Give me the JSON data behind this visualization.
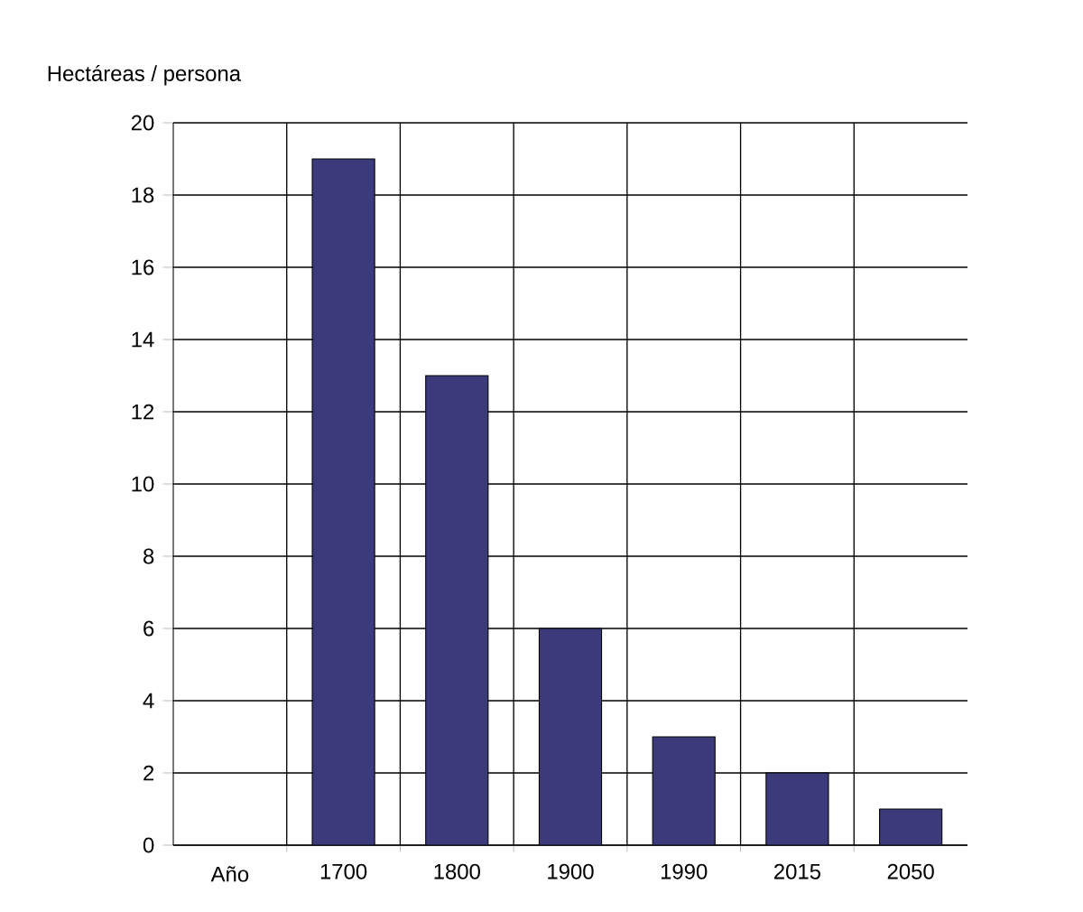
{
  "chart_data": {
    "type": "bar",
    "ylabel": "Hectáreas / persona",
    "xlabel": "Año",
    "categories": [
      null,
      "1700",
      "1800",
      "1900",
      "1990",
      "2015",
      "2050"
    ],
    "values": [
      null,
      19,
      13,
      6,
      3,
      2,
      1
    ],
    "color": "#3b3a7a",
    "ylim": [
      0,
      20
    ],
    "yticks": [
      0,
      2,
      4,
      6,
      8,
      10,
      12,
      14,
      16,
      18,
      20
    ],
    "grid": true
  }
}
